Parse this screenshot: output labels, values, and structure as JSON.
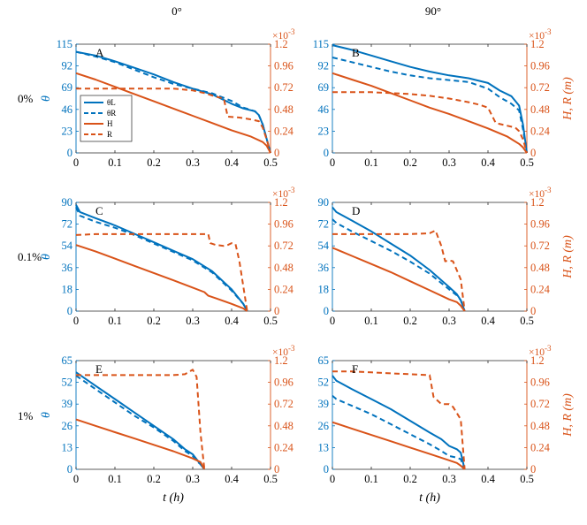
{
  "figure": {
    "column_titles": [
      "0°",
      "90°"
    ],
    "row_labels": [
      "0%",
      "0.1%",
      "1%"
    ],
    "left_axis_label": "θ",
    "right_axis_label": "H, R (m)",
    "x_axis_label": "t (h)",
    "right_axis_multiplier": "×10",
    "right_axis_exponent": "-3"
  },
  "chart_data": [
    {
      "type": "line",
      "panel": "A",
      "angle": "0°",
      "concentration": "0%",
      "xlabel": "t (h)",
      "ylabel": "θ",
      "y2label": "H, R (m)",
      "xlim": [
        0,
        0.5
      ],
      "ylim": [
        0,
        115
      ],
      "y2lim": [
        0,
        1.2
      ],
      "y2_scale": "×10^-3",
      "xticks": [
        "0",
        "0.1",
        "0.2",
        "0.3",
        "0.4",
        "0.5"
      ],
      "yticks": [
        "0",
        "23",
        "46",
        "69",
        "92",
        "115"
      ],
      "y2ticks": [
        "0",
        "0.24",
        "0.48",
        "0.72",
        "0.96",
        "1.2"
      ],
      "legend": [
        "θL",
        "θR",
        "H",
        "R"
      ],
      "series": [
        {
          "name": "θL",
          "axis": "left",
          "style": "solid",
          "color": "#0072BD",
          "x": [
            0,
            0.05,
            0.1,
            0.15,
            0.2,
            0.25,
            0.3,
            0.35,
            0.4,
            0.43,
            0.46,
            0.47,
            0.48,
            0.49,
            0.5
          ],
          "y": [
            107,
            103,
            97,
            90,
            83,
            75,
            68,
            62,
            52,
            47,
            44,
            40,
            30,
            15,
            0
          ]
        },
        {
          "name": "θR",
          "axis": "left",
          "style": "dashed",
          "color": "#0072BD",
          "x": [
            0,
            0.05,
            0.1,
            0.15,
            0.2,
            0.25,
            0.3,
            0.35,
            0.4,
            0.43,
            0.46,
            0.47,
            0.48,
            0.49,
            0.5
          ],
          "y": [
            107,
            102,
            96,
            88,
            80,
            73,
            68,
            63,
            55,
            48,
            44,
            40,
            30,
            15,
            0
          ]
        },
        {
          "name": "H",
          "axis": "right",
          "style": "solid",
          "color": "#D95319",
          "x": [
            0,
            0.05,
            0.1,
            0.15,
            0.2,
            0.25,
            0.3,
            0.35,
            0.4,
            0.45,
            0.48,
            0.49,
            0.5
          ],
          "y": [
            0.88,
            0.81,
            0.73,
            0.65,
            0.57,
            0.49,
            0.41,
            0.33,
            0.25,
            0.18,
            0.12,
            0.08,
            0
          ]
        },
        {
          "name": "R",
          "axis": "right",
          "style": "dashed",
          "color": "#D95319",
          "x": [
            0,
            0.05,
            0.1,
            0.15,
            0.2,
            0.25,
            0.3,
            0.33,
            0.36,
            0.38,
            0.39,
            0.42,
            0.45,
            0.47,
            0.48,
            0.49,
            0.5
          ],
          "y": [
            0.71,
            0.71,
            0.71,
            0.71,
            0.71,
            0.71,
            0.69,
            0.66,
            0.62,
            0.6,
            0.4,
            0.39,
            0.37,
            0.35,
            0.28,
            0.15,
            0
          ]
        }
      ]
    },
    {
      "type": "line",
      "panel": "B",
      "angle": "90°",
      "concentration": "0%",
      "xlabel": "t (h)",
      "ylabel": "θ",
      "y2label": "H, R (m)",
      "xlim": [
        0,
        0.5
      ],
      "ylim": [
        0,
        115
      ],
      "y2lim": [
        0,
        1.2
      ],
      "y2_scale": "×10^-3",
      "xticks": [
        "0",
        "0.1",
        "0.2",
        "0.3",
        "0.4",
        "0.5"
      ],
      "yticks": [
        "0",
        "23",
        "46",
        "69",
        "92",
        "115"
      ],
      "y2ticks": [
        "0",
        "0.24",
        "0.48",
        "0.72",
        "0.96",
        "1.2"
      ],
      "series": [
        {
          "name": "θL",
          "axis": "left",
          "style": "solid",
          "color": "#0072BD",
          "x": [
            0,
            0.05,
            0.1,
            0.15,
            0.2,
            0.25,
            0.3,
            0.35,
            0.4,
            0.43,
            0.46,
            0.48,
            0.49,
            0.5
          ],
          "y": [
            114,
            109,
            103,
            97,
            91,
            86,
            82,
            79,
            74,
            66,
            60,
            50,
            30,
            0
          ]
        },
        {
          "name": "θR",
          "axis": "left",
          "style": "dashed",
          "color": "#0072BD",
          "x": [
            0,
            0.05,
            0.1,
            0.15,
            0.2,
            0.25,
            0.3,
            0.35,
            0.4,
            0.43,
            0.46,
            0.48,
            0.49,
            0.5
          ],
          "y": [
            101,
            96,
            91,
            86,
            82,
            79,
            77,
            75,
            68,
            59,
            52,
            45,
            25,
            0
          ]
        },
        {
          "name": "H",
          "axis": "right",
          "style": "solid",
          "color": "#D95319",
          "x": [
            0,
            0.05,
            0.1,
            0.15,
            0.2,
            0.25,
            0.3,
            0.35,
            0.4,
            0.45,
            0.48,
            0.49,
            0.5
          ],
          "y": [
            0.88,
            0.81,
            0.74,
            0.66,
            0.58,
            0.5,
            0.43,
            0.35,
            0.27,
            0.18,
            0.1,
            0.06,
            0
          ]
        },
        {
          "name": "R",
          "axis": "right",
          "style": "dashed",
          "color": "#D95319",
          "x": [
            0,
            0.05,
            0.1,
            0.15,
            0.2,
            0.25,
            0.3,
            0.35,
            0.38,
            0.4,
            0.42,
            0.45,
            0.47,
            0.48,
            0.49,
            0.5
          ],
          "y": [
            0.67,
            0.67,
            0.67,
            0.66,
            0.65,
            0.63,
            0.6,
            0.56,
            0.53,
            0.5,
            0.33,
            0.3,
            0.28,
            0.24,
            0.15,
            0
          ]
        }
      ]
    },
    {
      "type": "line",
      "panel": "C",
      "angle": "0°",
      "concentration": "0.1%",
      "xlabel": "t (h)",
      "ylabel": "θ",
      "y2label": "H, R (m)",
      "xlim": [
        0,
        0.5
      ],
      "ylim": [
        0,
        90
      ],
      "y2lim": [
        0,
        1.2
      ],
      "y2_scale": "×10^-3",
      "xticks": [
        "0",
        "0.1",
        "0.2",
        "0.3",
        "0.4",
        "0.5"
      ],
      "yticks": [
        "0",
        "18",
        "36",
        "54",
        "72",
        "90"
      ],
      "y2ticks": [
        "0",
        "0.24",
        "0.48",
        "0.72",
        "0.96",
        "1.2"
      ],
      "series": [
        {
          "name": "θL",
          "axis": "left",
          "style": "solid",
          "color": "#0072BD",
          "x": [
            0,
            0.01,
            0.05,
            0.1,
            0.15,
            0.2,
            0.25,
            0.3,
            0.35,
            0.4,
            0.43,
            0.44
          ],
          "y": [
            88,
            82,
            77,
            71,
            64,
            57,
            50,
            43,
            33,
            18,
            6,
            0
          ]
        },
        {
          "name": "θR",
          "axis": "left",
          "style": "dashed",
          "color": "#0072BD",
          "x": [
            0,
            0.01,
            0.05,
            0.1,
            0.15,
            0.2,
            0.25,
            0.3,
            0.35,
            0.4,
            0.43,
            0.44
          ],
          "y": [
            86,
            79,
            74,
            69,
            63,
            56,
            49,
            42,
            32,
            17,
            6,
            0
          ]
        },
        {
          "name": "H",
          "axis": "right",
          "style": "solid",
          "color": "#D95319",
          "x": [
            0,
            0.05,
            0.1,
            0.15,
            0.2,
            0.25,
            0.3,
            0.33,
            0.34,
            0.36,
            0.4,
            0.43,
            0.44
          ],
          "y": [
            0.73,
            0.66,
            0.58,
            0.5,
            0.42,
            0.34,
            0.26,
            0.21,
            0.17,
            0.14,
            0.08,
            0.03,
            0
          ]
        },
        {
          "name": "R",
          "axis": "right",
          "style": "dashed",
          "color": "#D95319",
          "x": [
            0,
            0.05,
            0.1,
            0.2,
            0.3,
            0.34,
            0.345,
            0.36,
            0.38,
            0.39,
            0.4,
            0.41,
            0.42,
            0.44
          ],
          "y": [
            0.84,
            0.85,
            0.85,
            0.85,
            0.85,
            0.85,
            0.75,
            0.73,
            0.72,
            0.73,
            0.75,
            0.74,
            0.55,
            0
          ]
        }
      ]
    },
    {
      "type": "line",
      "panel": "D",
      "angle": "90°",
      "concentration": "0.1%",
      "xlabel": "t (h)",
      "ylabel": "θ",
      "y2label": "H, R (m)",
      "xlim": [
        0,
        0.5
      ],
      "ylim": [
        0,
        90
      ],
      "y2lim": [
        0,
        1.2
      ],
      "y2_scale": "×10^-3",
      "xticks": [
        "0",
        "0.1",
        "0.2",
        "0.3",
        "0.4",
        "0.5"
      ],
      "yticks": [
        "0",
        "18",
        "36",
        "54",
        "72",
        "90"
      ],
      "y2ticks": [
        "0",
        "0.24",
        "0.48",
        "0.72",
        "0.96",
        "1.2"
      ],
      "series": [
        {
          "name": "θL",
          "axis": "left",
          "style": "solid",
          "color": "#0072BD",
          "x": [
            0,
            0.01,
            0.05,
            0.1,
            0.15,
            0.2,
            0.25,
            0.3,
            0.32,
            0.33,
            0.34
          ],
          "y": [
            86,
            82,
            75,
            66,
            56,
            46,
            34,
            20,
            14,
            9,
            0
          ]
        },
        {
          "name": "θR",
          "axis": "left",
          "style": "dashed",
          "color": "#0072BD",
          "x": [
            0,
            0.01,
            0.05,
            0.1,
            0.15,
            0.2,
            0.25,
            0.3,
            0.32,
            0.33,
            0.34
          ],
          "y": [
            76,
            73,
            66,
            58,
            50,
            41,
            31,
            18,
            13,
            9,
            0
          ]
        },
        {
          "name": "H",
          "axis": "right",
          "style": "solid",
          "color": "#D95319",
          "x": [
            0,
            0.05,
            0.1,
            0.15,
            0.2,
            0.25,
            0.3,
            0.32,
            0.33,
            0.34
          ],
          "y": [
            0.7,
            0.61,
            0.52,
            0.43,
            0.33,
            0.23,
            0.13,
            0.1,
            0.06,
            0
          ]
        },
        {
          "name": "R",
          "axis": "right",
          "style": "dashed",
          "color": "#D95319",
          "x": [
            0,
            0.05,
            0.1,
            0.15,
            0.2,
            0.25,
            0.265,
            0.28,
            0.29,
            0.3,
            0.31,
            0.32,
            0.33,
            0.34
          ],
          "y": [
            0.85,
            0.85,
            0.85,
            0.85,
            0.85,
            0.86,
            0.89,
            0.72,
            0.55,
            0.56,
            0.55,
            0.45,
            0.35,
            0
          ]
        }
      ]
    },
    {
      "type": "line",
      "panel": "E",
      "angle": "0°",
      "concentration": "1%",
      "xlabel": "t (h)",
      "ylabel": "θ",
      "y2label": "H, R (m)",
      "xlim": [
        0,
        0.5
      ],
      "ylim": [
        0,
        65
      ],
      "y2lim": [
        0,
        1.2
      ],
      "y2_scale": "×10^-3",
      "xticks": [
        "0",
        "0.1",
        "0.2",
        "0.3",
        "0.4",
        "0.5"
      ],
      "yticks": [
        "0",
        "13",
        "26",
        "39",
        "52",
        "65"
      ],
      "y2ticks": [
        "0",
        "0.24",
        "0.48",
        "0.72",
        "0.96",
        "1.2"
      ],
      "series": [
        {
          "name": "θL",
          "axis": "left",
          "style": "solid",
          "color": "#0072BD",
          "x": [
            0,
            0.05,
            0.1,
            0.15,
            0.2,
            0.25,
            0.28,
            0.3,
            0.31,
            0.32,
            0.33
          ],
          "y": [
            58,
            50,
            42,
            34,
            26,
            18,
            12,
            9,
            6,
            3,
            0
          ]
        },
        {
          "name": "θR",
          "axis": "left",
          "style": "dashed",
          "color": "#0072BD",
          "x": [
            0,
            0.05,
            0.1,
            0.15,
            0.2,
            0.25,
            0.28,
            0.3,
            0.31,
            0.32,
            0.33
          ],
          "y": [
            56,
            48,
            40,
            32,
            25,
            17,
            11,
            8,
            5,
            3,
            0
          ]
        },
        {
          "name": "H",
          "axis": "right",
          "style": "solid",
          "color": "#D95319",
          "x": [
            0,
            0.05,
            0.1,
            0.15,
            0.2,
            0.25,
            0.3,
            0.32,
            0.33
          ],
          "y": [
            0.55,
            0.48,
            0.41,
            0.34,
            0.27,
            0.2,
            0.12,
            0.08,
            0
          ]
        },
        {
          "name": "R",
          "axis": "right",
          "style": "dashed",
          "color": "#D95319",
          "x": [
            0,
            0.05,
            0.1,
            0.15,
            0.2,
            0.25,
            0.28,
            0.3,
            0.31,
            0.32,
            0.33
          ],
          "y": [
            1.04,
            1.04,
            1.04,
            1.04,
            1.04,
            1.04,
            1.05,
            1.1,
            1.02,
            0.4,
            0
          ]
        }
      ]
    },
    {
      "type": "line",
      "panel": "F",
      "angle": "90°",
      "concentration": "1%",
      "xlabel": "t (h)",
      "ylabel": "θ",
      "y2label": "H, R (m)",
      "xlim": [
        0,
        0.5
      ],
      "ylim": [
        0,
        65
      ],
      "y2lim": [
        0,
        1.2
      ],
      "y2_scale": "×10^-3",
      "xticks": [
        "0",
        "0.1",
        "0.2",
        "0.3",
        "0.4",
        "0.5"
      ],
      "yticks": [
        "0",
        "13",
        "26",
        "39",
        "52",
        "65"
      ],
      "y2ticks": [
        "0",
        "0.24",
        "0.48",
        "0.72",
        "0.96",
        "1.2"
      ],
      "series": [
        {
          "name": "θL",
          "axis": "left",
          "style": "solid",
          "color": "#0072BD",
          "x": [
            0,
            0.01,
            0.05,
            0.1,
            0.15,
            0.2,
            0.25,
            0.28,
            0.3,
            0.32,
            0.33,
            0.34
          ],
          "y": [
            56,
            53,
            48,
            42,
            36,
            29,
            22,
            18,
            14,
            12,
            10,
            0
          ]
        },
        {
          "name": "θR",
          "axis": "left",
          "style": "dashed",
          "color": "#0072BD",
          "x": [
            0,
            0.01,
            0.05,
            0.1,
            0.15,
            0.2,
            0.25,
            0.28,
            0.3,
            0.32,
            0.33,
            0.34
          ],
          "y": [
            44,
            42,
            38,
            33,
            27,
            21,
            15,
            11,
            8,
            7,
            6,
            0
          ]
        },
        {
          "name": "H",
          "axis": "right",
          "style": "solid",
          "color": "#D95319",
          "x": [
            0,
            0.05,
            0.1,
            0.15,
            0.2,
            0.25,
            0.3,
            0.32,
            0.33,
            0.34
          ],
          "y": [
            0.52,
            0.45,
            0.38,
            0.31,
            0.24,
            0.17,
            0.1,
            0.07,
            0.04,
            0
          ]
        },
        {
          "name": "R",
          "axis": "right",
          "style": "dashed",
          "color": "#D95319",
          "x": [
            0,
            0.05,
            0.1,
            0.15,
            0.2,
            0.25,
            0.26,
            0.28,
            0.3,
            0.31,
            0.32,
            0.33,
            0.34
          ],
          "y": [
            1.08,
            1.08,
            1.07,
            1.06,
            1.05,
            1.04,
            0.8,
            0.72,
            0.72,
            0.69,
            0.62,
            0.55,
            0
          ]
        }
      ]
    }
  ]
}
